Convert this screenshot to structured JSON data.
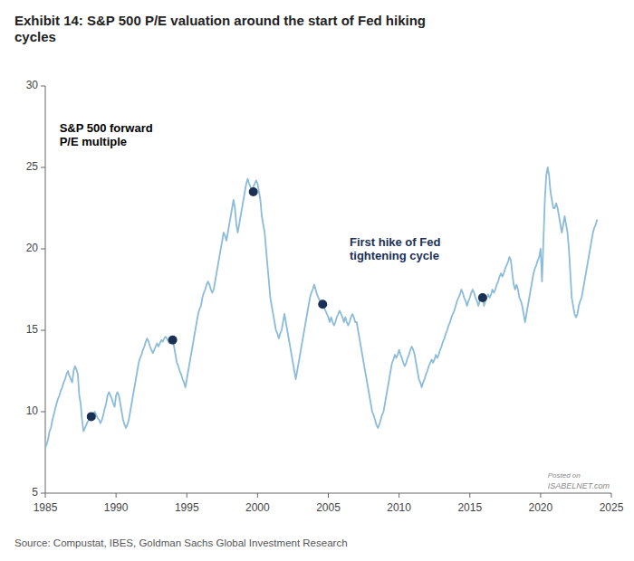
{
  "chart_data": {
    "type": "line",
    "title": "Exhibit 14: S&P 500 P/E valuation around the start of Fed hiking\ncycles",
    "xlim": [
      1985,
      2025
    ],
    "ylim": [
      5,
      30
    ],
    "xticks": [
      1985,
      1990,
      1995,
      2000,
      2005,
      2010,
      2015,
      2020,
      2025
    ],
    "yticks": [
      5,
      10,
      15,
      20,
      25,
      30
    ],
    "grid": false,
    "series": [
      {
        "type": "line",
        "color": "#8BBCDA",
        "line_style": "solid",
        "x": [
          1985.0,
          1985.1,
          1985.2,
          1985.3,
          1985.4,
          1985.5,
          1985.6,
          1985.7,
          1985.8,
          1985.9,
          1986.0,
          1986.1,
          1986.2,
          1986.3,
          1986.4,
          1986.5,
          1986.6,
          1986.7,
          1986.8,
          1986.9,
          1987.0,
          1987.1,
          1987.2,
          1987.3,
          1987.4,
          1987.5,
          1987.6,
          1987.7,
          1987.8,
          1987.9,
          1988.0,
          1988.1,
          1988.2,
          1988.25,
          1988.3,
          1988.4,
          1988.5,
          1988.6,
          1988.7,
          1988.8,
          1988.9,
          1989.0,
          1989.1,
          1989.2,
          1989.3,
          1989.4,
          1989.5,
          1989.6,
          1989.7,
          1989.8,
          1989.9,
          1990.0,
          1990.1,
          1990.2,
          1990.3,
          1990.4,
          1990.5,
          1990.6,
          1990.7,
          1990.8,
          1990.9,
          1991.0,
          1991.1,
          1991.2,
          1991.3,
          1991.4,
          1991.5,
          1991.6,
          1991.7,
          1991.8,
          1991.9,
          1992.0,
          1992.1,
          1992.2,
          1992.3,
          1992.4,
          1992.5,
          1992.6,
          1992.7,
          1992.8,
          1992.9,
          1993.0,
          1993.1,
          1993.2,
          1993.3,
          1993.4,
          1993.5,
          1993.6,
          1993.7,
          1993.8,
          1993.9,
          1994.0,
          1994.1,
          1994.2,
          1994.3,
          1994.4,
          1994.5,
          1994.6,
          1994.7,
          1994.8,
          1994.9,
          1995.0,
          1995.1,
          1995.2,
          1995.3,
          1995.4,
          1995.5,
          1995.6,
          1995.7,
          1995.8,
          1995.9,
          1996.0,
          1996.1,
          1996.2,
          1996.3,
          1996.4,
          1996.5,
          1996.6,
          1996.7,
          1996.8,
          1996.9,
          1997.0,
          1997.1,
          1997.2,
          1997.3,
          1997.4,
          1997.5,
          1997.6,
          1997.7,
          1997.8,
          1997.9,
          1998.0,
          1998.1,
          1998.2,
          1998.3,
          1998.4,
          1998.5,
          1998.6,
          1998.7,
          1998.8,
          1998.9,
          1999.0,
          1999.1,
          1999.2,
          1999.3,
          1999.4,
          1999.5,
          1999.6,
          1999.7,
          1999.8,
          1999.9,
          2000.0,
          2000.1,
          2000.2,
          2000.3,
          2000.4,
          2000.5,
          2000.6,
          2000.7,
          2000.8,
          2000.9,
          2001.0,
          2001.1,
          2001.2,
          2001.3,
          2001.4,
          2001.5,
          2001.6,
          2001.7,
          2001.8,
          2001.9,
          2002.0,
          2002.1,
          2002.2,
          2002.3,
          2002.4,
          2002.5,
          2002.6,
          2002.7,
          2002.8,
          2002.9,
          2003.0,
          2003.1,
          2003.2,
          2003.3,
          2003.4,
          2003.5,
          2003.6,
          2003.7,
          2003.8,
          2003.9,
          2004.0,
          2004.1,
          2004.2,
          2004.3,
          2004.4,
          2004.5,
          2004.6,
          2004.7,
          2004.8,
          2004.9,
          2005.0,
          2005.1,
          2005.2,
          2005.3,
          2005.4,
          2005.5,
          2005.6,
          2005.7,
          2005.8,
          2005.9,
          2006.0,
          2006.1,
          2006.2,
          2006.3,
          2006.4,
          2006.5,
          2006.6,
          2006.7,
          2006.8,
          2006.9,
          2007.0,
          2007.1,
          2007.2,
          2007.3,
          2007.4,
          2007.5,
          2007.6,
          2007.7,
          2007.8,
          2007.9,
          2008.0,
          2008.1,
          2008.2,
          2008.3,
          2008.4,
          2008.5,
          2008.6,
          2008.7,
          2008.8,
          2008.9,
          2009.0,
          2009.1,
          2009.2,
          2009.3,
          2009.4,
          2009.5,
          2009.6,
          2009.7,
          2009.8,
          2009.9,
          2010.0,
          2010.1,
          2010.2,
          2010.3,
          2010.4,
          2010.5,
          2010.6,
          2010.7,
          2010.8,
          2010.9,
          2011.0,
          2011.1,
          2011.2,
          2011.3,
          2011.4,
          2011.5,
          2011.6,
          2011.7,
          2011.8,
          2011.9,
          2012.0,
          2012.1,
          2012.2,
          2012.3,
          2012.4,
          2012.5,
          2012.6,
          2012.7,
          2012.8,
          2012.9,
          2013.0,
          2013.1,
          2013.2,
          2013.3,
          2013.4,
          2013.5,
          2013.6,
          2013.7,
          2013.8,
          2013.9,
          2014.0,
          2014.1,
          2014.2,
          2014.3,
          2014.4,
          2014.5,
          2014.6,
          2014.7,
          2014.8,
          2014.9,
          2015.0,
          2015.1,
          2015.2,
          2015.3,
          2015.4,
          2015.5,
          2015.6,
          2015.7,
          2015.8,
          2015.9,
          2016.0,
          2016.1,
          2016.2,
          2016.3,
          2016.4,
          2016.5,
          2016.6,
          2016.7,
          2016.8,
          2016.9,
          2017.0,
          2017.1,
          2017.2,
          2017.3,
          2017.4,
          2017.5,
          2017.6,
          2017.7,
          2017.8,
          2017.9,
          2018.0,
          2018.1,
          2018.2,
          2018.3,
          2018.4,
          2018.5,
          2018.6,
          2018.7,
          2018.8,
          2018.9,
          2019.0,
          2019.1,
          2019.2,
          2019.3,
          2019.4,
          2019.5,
          2019.6,
          2019.7,
          2019.8,
          2019.9,
          2020.0,
          2020.1,
          2020.2,
          2020.3,
          2020.4,
          2020.5,
          2020.6,
          2020.7,
          2020.8,
          2020.9,
          2021.0,
          2021.1,
          2021.2,
          2021.3,
          2021.4,
          2021.5,
          2021.6,
          2021.7,
          2021.8,
          2021.9,
          2022.0,
          2022.1,
          2022.2,
          2022.3,
          2022.4,
          2022.5,
          2022.6,
          2022.7,
          2022.8,
          2022.9,
          2023.0,
          2023.1,
          2023.2,
          2023.3,
          2023.4,
          2023.5,
          2023.6,
          2023.7,
          2023.8,
          2023.9,
          2024.0
        ],
        "values": [
          7.8,
          8.0,
          8.3,
          8.8,
          9.0,
          9.5,
          9.8,
          10.2,
          10.5,
          10.8,
          11.0,
          11.3,
          11.5,
          11.8,
          12.0,
          12.3,
          12.5,
          12.2,
          12.0,
          11.8,
          12.5,
          12.8,
          12.6,
          12.3,
          11.0,
          10.5,
          9.5,
          8.8,
          9.0,
          9.2,
          9.4,
          9.5,
          9.6,
          9.7,
          9.8,
          9.9,
          10.0,
          9.8,
          9.6,
          9.5,
          9.3,
          9.5,
          9.8,
          10.2,
          10.5,
          11.0,
          11.2,
          11.0,
          10.8,
          10.5,
          10.3,
          11.0,
          11.2,
          11.0,
          10.5,
          10.0,
          9.5,
          9.2,
          9.0,
          9.2,
          9.5,
          10.0,
          10.5,
          11.0,
          11.5,
          12.0,
          12.5,
          13.0,
          13.3,
          13.5,
          13.8,
          14.0,
          14.3,
          14.5,
          14.3,
          14.0,
          13.8,
          13.6,
          13.8,
          14.0,
          14.2,
          14.0,
          14.2,
          14.4,
          14.3,
          14.5,
          14.6,
          14.5,
          14.3,
          14.2,
          14.3,
          14.4,
          14.0,
          13.5,
          13.0,
          12.8,
          12.5,
          12.3,
          12.0,
          11.8,
          11.5,
          12.0,
          12.5,
          13.0,
          13.5,
          14.0,
          14.5,
          15.0,
          15.5,
          16.0,
          16.3,
          16.5,
          17.0,
          17.3,
          17.5,
          17.8,
          18.0,
          17.8,
          17.5,
          17.3,
          17.5,
          18.0,
          18.5,
          19.0,
          19.5,
          20.0,
          20.5,
          21.0,
          20.8,
          20.5,
          21.0,
          21.5,
          22.0,
          22.5,
          23.0,
          22.5,
          21.5,
          21.0,
          21.5,
          22.0,
          22.5,
          23.0,
          23.5,
          24.0,
          24.3,
          24.0,
          23.8,
          23.5,
          23.8,
          24.0,
          24.2,
          24.0,
          23.5,
          23.0,
          22.0,
          21.5,
          21.0,
          20.0,
          19.0,
          18.0,
          17.0,
          16.5,
          16.0,
          15.5,
          15.0,
          14.8,
          14.5,
          14.8,
          15.0,
          15.5,
          16.0,
          15.5,
          15.0,
          14.5,
          14.0,
          13.5,
          13.0,
          12.5,
          12.0,
          12.5,
          13.0,
          13.5,
          14.0,
          14.5,
          15.0,
          15.5,
          16.0,
          16.5,
          17.0,
          17.3,
          17.5,
          17.8,
          17.5,
          17.2,
          17.0,
          16.8,
          16.6,
          16.6,
          16.4,
          16.2,
          16.0,
          15.8,
          15.5,
          15.8,
          15.5,
          15.3,
          15.5,
          15.8,
          16.0,
          16.2,
          16.0,
          15.8,
          15.5,
          15.8,
          15.5,
          15.3,
          15.5,
          15.8,
          16.0,
          15.8,
          15.5,
          15.5,
          15.0,
          14.5,
          14.0,
          13.5,
          13.0,
          12.5,
          12.0,
          11.5,
          11.0,
          10.5,
          10.0,
          9.8,
          9.5,
          9.2,
          9.0,
          9.2,
          9.5,
          9.8,
          10.0,
          10.5,
          11.0,
          11.5,
          12.0,
          12.5,
          13.0,
          13.2,
          13.5,
          13.3,
          13.5,
          13.8,
          13.5,
          13.3,
          13.0,
          12.8,
          13.0,
          13.3,
          13.5,
          13.8,
          14.0,
          13.8,
          13.5,
          13.0,
          12.5,
          12.0,
          11.8,
          11.5,
          11.8,
          12.0,
          12.3,
          12.5,
          12.8,
          13.0,
          13.2,
          13.0,
          13.2,
          13.5,
          13.3,
          13.5,
          13.8,
          14.0,
          14.3,
          14.5,
          14.8,
          15.0,
          15.3,
          15.5,
          15.8,
          16.0,
          16.2,
          16.5,
          16.8,
          17.0,
          17.2,
          17.5,
          17.3,
          17.0,
          16.8,
          16.5,
          16.8,
          17.0,
          17.3,
          17.5,
          17.3,
          17.0,
          16.8,
          16.5,
          16.8,
          17.0,
          17.0,
          16.5,
          16.8,
          17.0,
          17.2,
          17.0,
          17.2,
          17.5,
          17.3,
          17.5,
          17.8,
          18.0,
          18.3,
          18.5,
          18.3,
          18.5,
          18.8,
          19.0,
          19.2,
          19.5,
          19.3,
          18.5,
          17.8,
          17.5,
          17.8,
          17.5,
          17.0,
          16.8,
          16.5,
          16.0,
          15.5,
          16.0,
          16.5,
          17.0,
          17.5,
          18.0,
          18.5,
          18.8,
          19.0,
          19.3,
          19.5,
          20.0,
          18.0,
          20.5,
          23.0,
          24.5,
          25.0,
          24.5,
          23.5,
          23.0,
          22.5,
          22.5,
          22.8,
          22.5,
          22.0,
          21.5,
          21.0,
          21.5,
          22.0,
          21.5,
          21.0,
          20.0,
          18.5,
          17.0,
          16.5,
          16.0,
          15.8,
          16.0,
          16.5,
          16.8,
          17.0,
          17.5,
          18.0,
          18.5,
          19.0,
          19.5,
          20.0,
          20.5,
          21.0,
          21.3,
          21.5,
          21.8
        ]
      },
      {
        "type": "scatter",
        "color": "#1a3055",
        "marker": "circle",
        "x": [
          1988.25,
          1994.0,
          1999.7,
          2004.6,
          2015.9
        ],
        "values": [
          9.7,
          14.4,
          23.5,
          16.6,
          17.0
        ]
      }
    ],
    "annotations": [
      {
        "text": "S&P 500 forward\nP/E multiple",
        "x": 1986.0,
        "y": 27.8,
        "color": "#000000"
      },
      {
        "text": "First hike of Fed\ntightening cycle",
        "x": 2006.5,
        "y": 20.8,
        "color": "#1a3055"
      },
      {
        "text": "Posted on",
        "x": 2020.5,
        "y": 6.3,
        "color": "#888888"
      },
      {
        "text": "ISABELNET.com",
        "x": 2020.5,
        "y": 5.7,
        "color": "#888888"
      },
      {
        "text": "Source: Compustat, IBES, Goldman Sachs Global Investment Research",
        "color": "#555555"
      }
    ]
  }
}
